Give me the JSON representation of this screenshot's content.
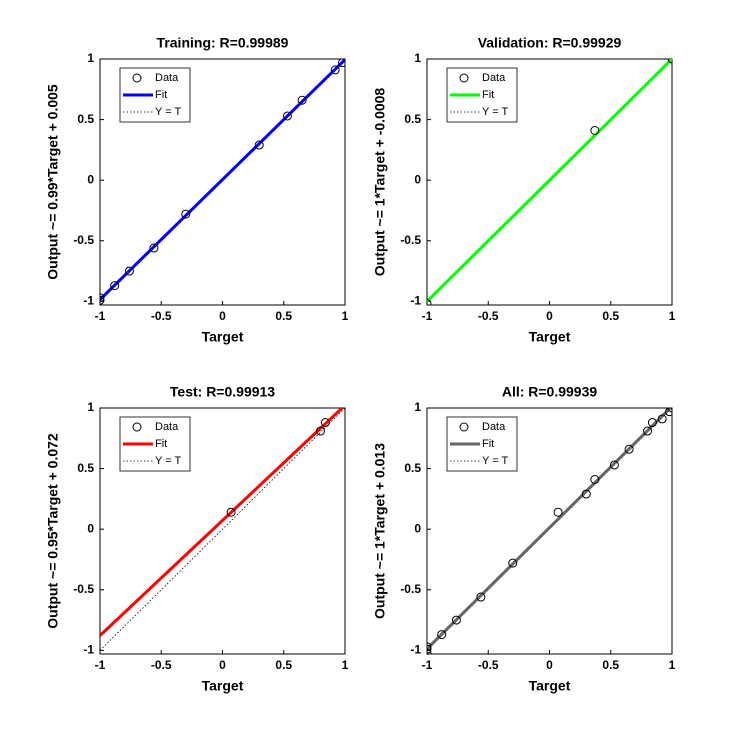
{
  "chart_data": [
    {
      "type": "scatter",
      "title": "Training: R=0.99989",
      "x_label": "Target",
      "y_label": "Output ~= 0.99*Target + 0.005",
      "xlim": [
        -1,
        1
      ],
      "ylim": [
        -1.03,
        1
      ],
      "xticks": [
        -1,
        -0.5,
        0,
        0.5,
        1
      ],
      "yticks": [
        -1,
        -0.5,
        0,
        0.5,
        1
      ],
      "series": [
        {
          "name": "Data",
          "style": "markers",
          "color": "#000000",
          "x": [
            -1,
            -1,
            -0.88,
            -0.76,
            -0.56,
            -0.3,
            0.3,
            0.53,
            0.65,
            0.92,
            0.98
          ],
          "values": [
            -0.99,
            -0.97,
            -0.87,
            -0.75,
            -0.56,
            -0.28,
            0.29,
            0.53,
            0.66,
            0.91,
            0.97
          ]
        },
        {
          "name": "Fit",
          "style": "line",
          "color": "#0000ff",
          "x": [
            -1,
            1
          ],
          "values": [
            -0.985,
            0.995
          ]
        },
        {
          "name": "Y = T",
          "style": "dotted",
          "color": "#000000",
          "x": [
            -1,
            1
          ],
          "values": [
            -1,
            1
          ]
        }
      ]
    },
    {
      "type": "scatter",
      "title": "Validation: R=0.99929",
      "x_label": "Target",
      "y_label": "Output ~= 1*Target + -0.0008",
      "xlim": [
        -1,
        1
      ],
      "ylim": [
        -1.03,
        1
      ],
      "xticks": [
        -1,
        -0.5,
        0,
        0.5,
        1
      ],
      "yticks": [
        -1,
        -0.5,
        0,
        0.5,
        1
      ],
      "series": [
        {
          "name": "Data",
          "style": "markers",
          "color": "#000000",
          "x": [
            -1,
            0.37,
            1
          ],
          "values": [
            -1.02,
            0.41,
            1
          ]
        },
        {
          "name": "Fit",
          "style": "line",
          "color": "#00ff00",
          "x": [
            -1,
            1
          ],
          "values": [
            -1.0008,
            0.9992
          ]
        },
        {
          "name": "Y = T",
          "style": "dotted",
          "color": "#000000",
          "x": [
            -1,
            1
          ],
          "values": [
            -1,
            1
          ]
        }
      ]
    },
    {
      "type": "scatter",
      "title": "Test: R=0.99913",
      "x_label": "Target",
      "y_label": "Output ~= 0.95*Target + 0.072",
      "xlim": [
        -1,
        1
      ],
      "ylim": [
        -1.03,
        1
      ],
      "xticks": [
        -1,
        -0.5,
        0,
        0.5,
        1
      ],
      "yticks": [
        -1,
        -0.5,
        0,
        0.5,
        1
      ],
      "series": [
        {
          "name": "Data",
          "style": "markers",
          "color": "#000000",
          "x": [
            0.07,
            0.8,
            0.84
          ],
          "values": [
            0.14,
            0.81,
            0.88
          ]
        },
        {
          "name": "Fit",
          "style": "line",
          "color": "#ff0000",
          "x": [
            -1,
            1
          ],
          "values": [
            -0.878,
            1.022
          ]
        },
        {
          "name": "Y = T",
          "style": "dotted",
          "color": "#000000",
          "x": [
            -1,
            1
          ],
          "values": [
            -1,
            1
          ]
        }
      ]
    },
    {
      "type": "scatter",
      "title": "All: R=0.99939",
      "x_label": "Target",
      "y_label": "Output ~= 1*Target + 0.013",
      "xlim": [
        -1,
        1
      ],
      "ylim": [
        -1.03,
        1
      ],
      "xticks": [
        -1,
        -0.5,
        0,
        0.5,
        1
      ],
      "yticks": [
        -1,
        -0.5,
        0,
        0.5,
        1
      ],
      "series": [
        {
          "name": "Data",
          "style": "markers",
          "color": "#000000",
          "x": [
            -1,
            -1,
            -1,
            -0.88,
            -0.76,
            -0.56,
            -0.3,
            0.07,
            0.3,
            0.37,
            0.53,
            0.65,
            0.8,
            0.84,
            0.92,
            0.98,
            1
          ],
          "values": [
            -0.99,
            -0.97,
            -1.02,
            -0.87,
            -0.75,
            -0.56,
            -0.28,
            0.14,
            0.29,
            0.41,
            0.53,
            0.66,
            0.81,
            0.88,
            0.91,
            0.97,
            1
          ]
        },
        {
          "name": "Fit",
          "style": "line",
          "color": "#666666",
          "x": [
            -1,
            1
          ],
          "values": [
            -0.987,
            1.013
          ]
        },
        {
          "name": "Y = T",
          "style": "dotted",
          "color": "#000000",
          "x": [
            -1,
            1
          ],
          "values": [
            -1,
            1
          ]
        }
      ]
    }
  ]
}
